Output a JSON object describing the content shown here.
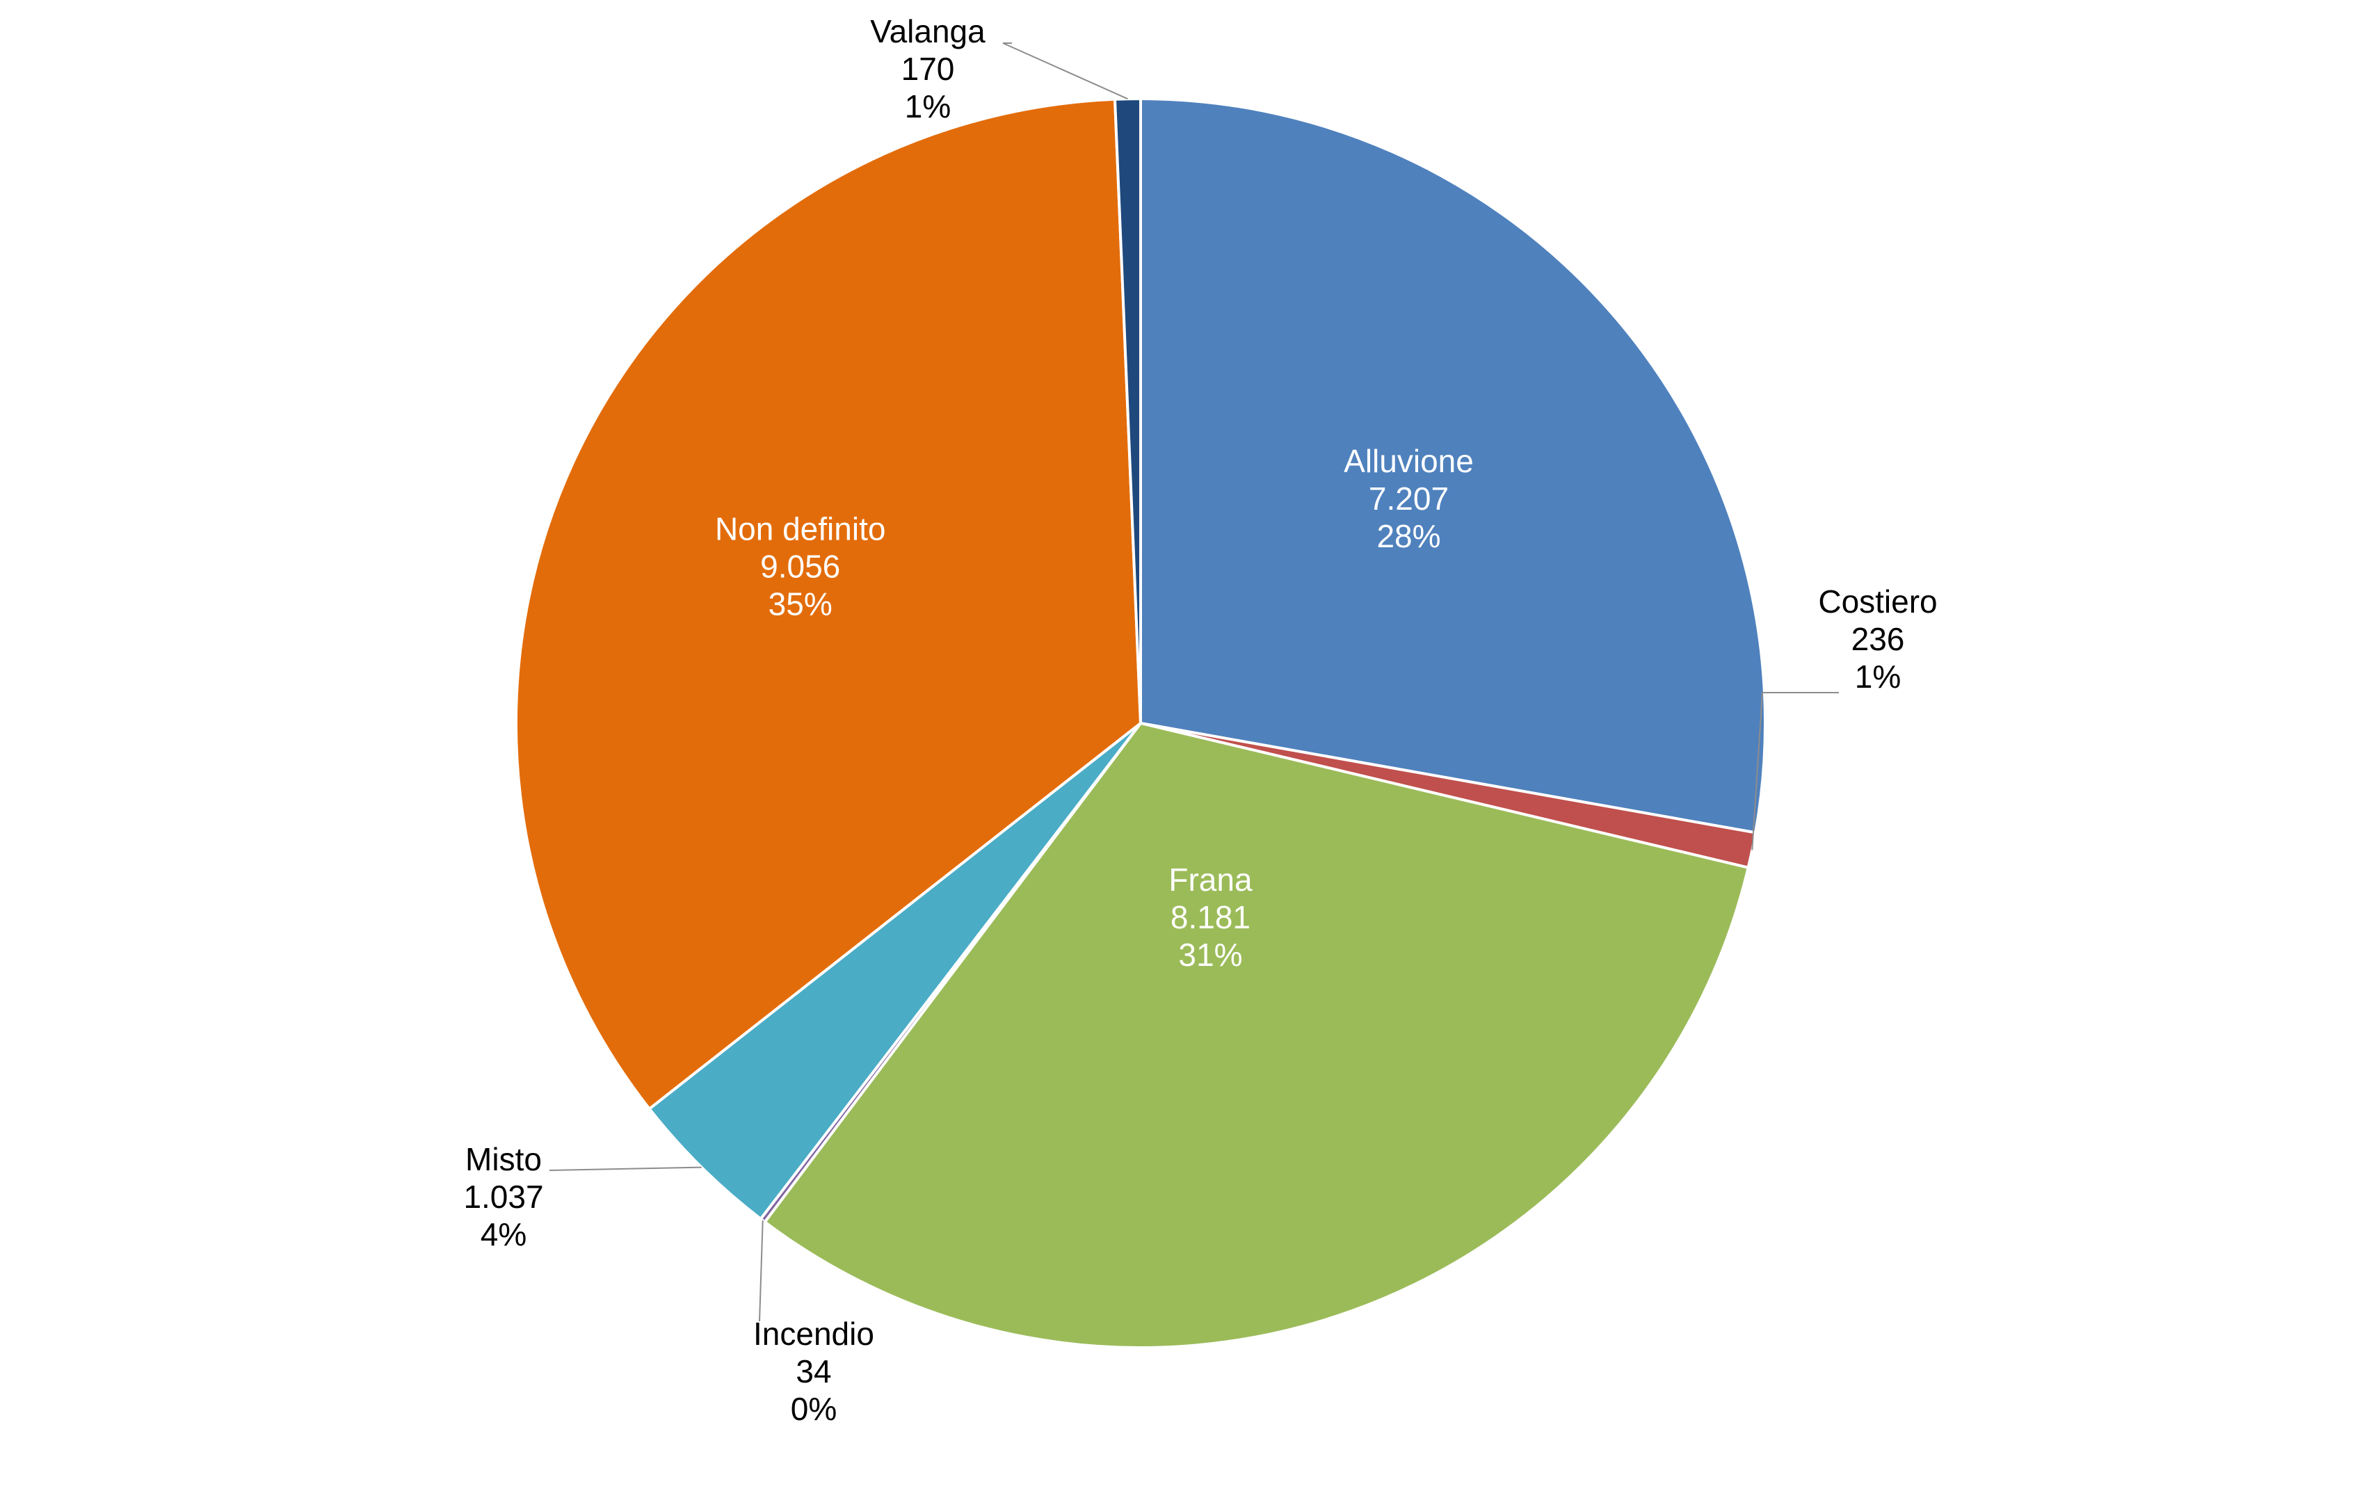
{
  "chart_data": {
    "type": "pie",
    "title": "",
    "legend": "none",
    "start_angle_deg": 0,
    "direction": "clockwise",
    "slices": [
      {
        "name": "Alluvione",
        "value": 7207,
        "value_label": "7.207",
        "percent_label": "28%",
        "color": "#4F81BD",
        "label_color": "#FFFFFF"
      },
      {
        "name": "Costiero",
        "value": 236,
        "value_label": "236",
        "percent_label": "1%",
        "color": "#C0504D",
        "label_color": "#000000"
      },
      {
        "name": "Frana",
        "value": 8181,
        "value_label": "8.181",
        "percent_label": "31%",
        "color": "#9BBB59",
        "label_color": "#FFFFFF"
      },
      {
        "name": "Incendio",
        "value": 34,
        "value_label": "34",
        "percent_label": "0%",
        "color": "#8064A2",
        "label_color": "#000000"
      },
      {
        "name": "Misto",
        "value": 1037,
        "value_label": "1.037",
        "percent_label": "4%",
        "color": "#4BACC6",
        "label_color": "#000000"
      },
      {
        "name": "Non definito",
        "value": 9056,
        "value_label": "9.056",
        "percent_label": "35%",
        "color": "#E36C0A",
        "label_color": "#FFFFFF"
      },
      {
        "name": "Valanga",
        "value": 170,
        "value_label": "170",
        "percent_label": "1%",
        "color": "#1F497D",
        "label_color": "#000000"
      }
    ]
  }
}
